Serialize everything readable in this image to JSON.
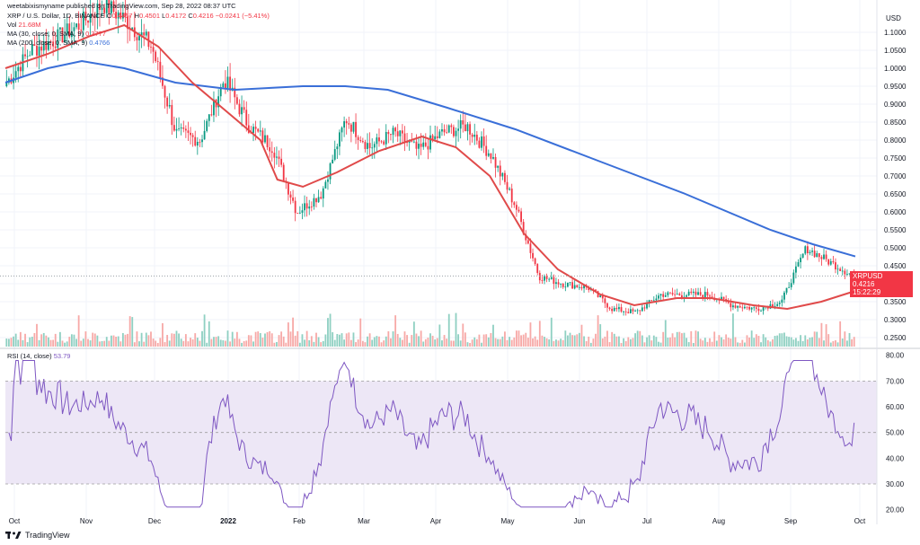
{
  "header": {
    "published": "weetabixismyname published on TradingView.com, Sep 28, 2022 08:37 UTC",
    "symbol": "XRP / U.S. Dollar, 1D, BINANCE",
    "o_label": "O",
    "o": "0.4457",
    "h_label": "H",
    "h": "0.4501",
    "l_label": "L",
    "l": "0.4172",
    "c_label": "C",
    "c": "0.4216",
    "change": "−0.0241 (−5.41%)",
    "vol_label": "Vol",
    "vol": "21.68M",
    "ma30_label": "MA (30, close, 0, SMA, 9)",
    "ma30": "0.3777",
    "ma200_label": "MA (200, close, 0, SMA, 9)",
    "ma200": "0.4766",
    "rsi_label": "RSI (14, close)",
    "rsi": "53.79"
  },
  "price_box": {
    "symbol": "XRPUSD",
    "price": "0.4216",
    "countdown": "15:22:29"
  },
  "currency_label": "USD",
  "footer": {
    "brand": "TradingView"
  },
  "colors": {
    "up": "#089981",
    "down": "#f23645",
    "ma30": "#e04a4a",
    "ma200": "#3a6fd8",
    "rsi_line": "#7e57c2",
    "rsi_band": "#ede7f6",
    "vol_up": "#8fd0c2",
    "vol_down": "#f7a9a7"
  },
  "chart_data": {
    "type": "candlestick",
    "symbol": "XRP / U.S. Dollar",
    "interval": "1D",
    "exchange": "BINANCE",
    "x_ticks": [
      "Oct",
      "Nov",
      "Dec",
      "2022",
      "Feb",
      "Mar",
      "Apr",
      "May",
      "Jun",
      "Jul",
      "Aug",
      "Sep",
      "Oct"
    ],
    "y_ticks": [
      1.1,
      1.05,
      1.0,
      0.95,
      0.9,
      0.85,
      0.8,
      0.75,
      0.7,
      0.65,
      0.6,
      0.55,
      0.5,
      0.45,
      0.4,
      0.35,
      0.3,
      0.25
    ],
    "ylim": [
      0.225,
      1.16
    ],
    "close_path": [
      [
        "Oct",
        0.96
      ],
      [
        "Oct",
        1.05
      ],
      [
        "Oct",
        1.08
      ],
      [
        "Nov",
        1.12
      ],
      [
        "Nov",
        1.18
      ],
      [
        "Nov",
        1.13
      ],
      [
        "Nov",
        1.06
      ],
      [
        "Dec",
        0.82
      ],
      [
        "Dec",
        0.8
      ],
      [
        "Dec",
        0.97
      ],
      [
        "2022",
        0.84
      ],
      [
        "2022",
        0.78
      ],
      [
        "2022",
        0.6
      ],
      [
        "Feb",
        0.65
      ],
      [
        "Feb",
        0.86
      ],
      [
        "Feb",
        0.78
      ],
      [
        "Mar",
        0.82
      ],
      [
        "Mar",
        0.77
      ],
      [
        "Mar",
        0.82
      ],
      [
        "Apr",
        0.84
      ],
      [
        "Apr",
        0.76
      ],
      [
        "May",
        0.62
      ],
      [
        "May",
        0.42
      ],
      [
        "May",
        0.4
      ],
      [
        "Jun",
        0.39
      ],
      [
        "Jun",
        0.33
      ],
      [
        "Jul",
        0.32
      ],
      [
        "Jul",
        0.37
      ],
      [
        "Aug",
        0.37
      ],
      [
        "Aug",
        0.37
      ],
      [
        "Aug",
        0.34
      ],
      [
        "Sep",
        0.33
      ],
      [
        "Sep",
        0.35
      ],
      [
        "Sep",
        0.5
      ],
      [
        "Sep",
        0.46
      ],
      [
        "Oct",
        0.4216
      ]
    ],
    "ma30": [
      [
        0.0,
        1.0
      ],
      [
        0.05,
        1.04
      ],
      [
        0.1,
        1.09
      ],
      [
        0.14,
        1.12
      ],
      [
        0.18,
        1.06
      ],
      [
        0.22,
        0.96
      ],
      [
        0.26,
        0.88
      ],
      [
        0.3,
        0.8
      ],
      [
        0.32,
        0.69
      ],
      [
        0.35,
        0.67
      ],
      [
        0.39,
        0.71
      ],
      [
        0.44,
        0.77
      ],
      [
        0.49,
        0.81
      ],
      [
        0.53,
        0.78
      ],
      [
        0.57,
        0.7
      ],
      [
        0.61,
        0.54
      ],
      [
        0.65,
        0.44
      ],
      [
        0.7,
        0.37
      ],
      [
        0.74,
        0.34
      ],
      [
        0.79,
        0.36
      ],
      [
        0.83,
        0.36
      ],
      [
        0.88,
        0.34
      ],
      [
        0.92,
        0.33
      ],
      [
        0.96,
        0.35
      ],
      [
        1.0,
        0.38
      ]
    ],
    "ma200": [
      [
        0.0,
        0.96
      ],
      [
        0.05,
        1.0
      ],
      [
        0.09,
        1.02
      ],
      [
        0.14,
        1.0
      ],
      [
        0.2,
        0.96
      ],
      [
        0.27,
        0.94
      ],
      [
        0.35,
        0.95
      ],
      [
        0.4,
        0.95
      ],
      [
        0.45,
        0.94
      ],
      [
        0.52,
        0.89
      ],
      [
        0.6,
        0.83
      ],
      [
        0.7,
        0.74
      ],
      [
        0.8,
        0.65
      ],
      [
        0.9,
        0.55
      ],
      [
        0.95,
        0.51
      ],
      [
        1.0,
        0.476
      ]
    ],
    "rsi": {
      "label": "RSI (14, close)",
      "ticks": [
        80.0,
        70.0,
        60.0,
        50.0,
        40.0,
        30.0,
        20.0
      ],
      "ylim": [
        15,
        82
      ],
      "band": [
        30,
        70
      ],
      "midline": 50,
      "last": 53.79
    },
    "last_price": 0.4216
  }
}
